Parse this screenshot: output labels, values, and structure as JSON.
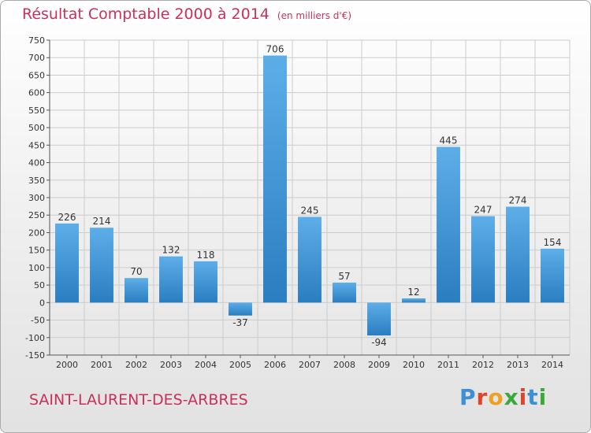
{
  "header": {
    "title": "Résultat Comptable 2000 à 2014",
    "subtitle": "(en milliers d'€)"
  },
  "footer": {
    "location": "SAINT-LAURENT-DES-ARBRES",
    "logo": "Proxiti",
    "logo_colors": [
      "#3d8fd8",
      "#e0452c",
      "#f0a020",
      "#3aa83a",
      "#e0452c",
      "#3d8fd8",
      "#3aa83a"
    ]
  },
  "colors": {
    "bar_light": "#5daee8",
    "bar_dark": "#2a7dc0",
    "grid": "#cccccc",
    "axis": "#555555"
  },
  "chart_data": {
    "type": "bar",
    "title": "Résultat Comptable 2000 à 2014",
    "subtitle": "(en milliers d'€)",
    "xlabel": "",
    "ylabel": "",
    "categories": [
      "2000",
      "2001",
      "2002",
      "2003",
      "2004",
      "2005",
      "2006",
      "2007",
      "2008",
      "2009",
      "2010",
      "2011",
      "2012",
      "2013",
      "2014"
    ],
    "values": [
      226,
      214,
      70,
      132,
      118,
      -37,
      706,
      245,
      57,
      -94,
      12,
      445,
      247,
      274,
      154
    ],
    "ylim": [
      -150,
      750
    ],
    "ytick_step": 50,
    "grid": true,
    "legend": "none"
  }
}
